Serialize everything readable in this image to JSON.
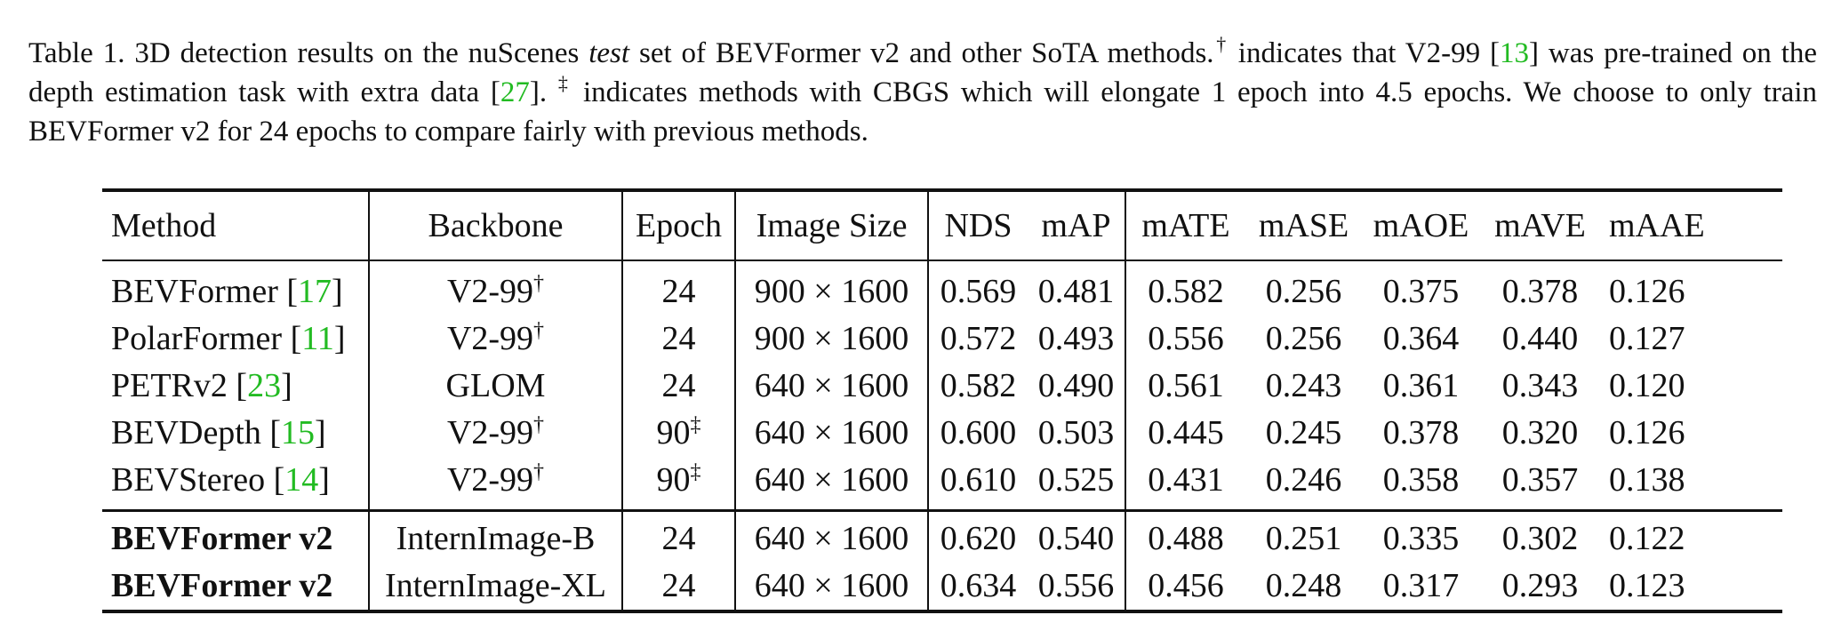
{
  "caption": {
    "label": "Table 1.",
    "part1": " 3D detection results on the nuScenes ",
    "test_word": "test",
    "part2": " set of BEVFormer v2 and other SoTA methods.",
    "dagger": "†",
    "part3": " indicates that V2-99 [",
    "cite_13": "13",
    "part4": "] was pre-trained on the depth estimation task with extra data [",
    "cite_27": "27",
    "part5": "]. ",
    "ddagger": "‡",
    "part6": " indicates methods with CBGS which will elongate 1 epoch into 4.5 epochs. We choose to only train BEVFormer v2 for 24 epochs to compare fairly with previous methods."
  },
  "table": {
    "headers": [
      "Method",
      "Backbone",
      "Epoch",
      "Image Size",
      "NDS",
      "mAP",
      "mATE",
      "mASE",
      "mAOE",
      "mAVE",
      "mAAE"
    ],
    "rows_prior": [
      {
        "method": "BEVFormer",
        "cite": "17",
        "backbone": "V2-99",
        "backbone_mark": "†",
        "epoch": "24",
        "epoch_mark": "",
        "image_size": "900 × 1600",
        "nds": "0.569",
        "map": "0.481",
        "mate": "0.582",
        "mase": "0.256",
        "maoe": "0.375",
        "mave": "0.378",
        "maae": "0.126"
      },
      {
        "method": "PolarFormer",
        "cite": "11",
        "backbone": "V2-99",
        "backbone_mark": "†",
        "epoch": "24",
        "epoch_mark": "",
        "image_size": "900 × 1600",
        "nds": "0.572",
        "map": "0.493",
        "mate": "0.556",
        "mase": "0.256",
        "maoe": "0.364",
        "mave": "0.440",
        "maae": "0.127"
      },
      {
        "method": "PETRv2",
        "cite": "23",
        "backbone": "GLOM",
        "backbone_mark": "",
        "epoch": "24",
        "epoch_mark": "",
        "image_size": "640 × 1600",
        "nds": "0.582",
        "map": "0.490",
        "mate": "0.561",
        "mase": "0.243",
        "maoe": "0.361",
        "mave": "0.343",
        "maae": "0.120"
      },
      {
        "method": "BEVDepth",
        "cite": "15",
        "backbone": "V2-99",
        "backbone_mark": "†",
        "epoch": "90",
        "epoch_mark": "‡",
        "image_size": "640 × 1600",
        "nds": "0.600",
        "map": "0.503",
        "mate": "0.445",
        "mase": "0.245",
        "maoe": "0.378",
        "mave": "0.320",
        "maae": "0.126"
      },
      {
        "method": "BEVStereo",
        "cite": "14",
        "backbone": "V2-99",
        "backbone_mark": "†",
        "epoch": "90",
        "epoch_mark": "‡",
        "image_size": "640 × 1600",
        "nds": "0.610",
        "map": "0.525",
        "mate": "0.431",
        "mase": "0.246",
        "maoe": "0.358",
        "mave": "0.357",
        "maae": "0.138"
      }
    ],
    "rows_ours": [
      {
        "method": "BEVFormer v2",
        "backbone": "InternImage-B",
        "epoch": "24",
        "image_size": "640 × 1600",
        "nds": "0.620",
        "map": "0.540",
        "mate": "0.488",
        "mase": "0.251",
        "maoe": "0.335",
        "mave": "0.302",
        "maae": "0.122"
      },
      {
        "method": "BEVFormer v2",
        "backbone": "InternImage-XL",
        "epoch": "24",
        "image_size": "640 × 1600",
        "nds": "0.634",
        "map": "0.556",
        "mate": "0.456",
        "mase": "0.248",
        "maoe": "0.317",
        "mave": "0.293",
        "maae": "0.123"
      }
    ]
  },
  "colors": {
    "citation": "#22bb22",
    "text": "#111111"
  }
}
